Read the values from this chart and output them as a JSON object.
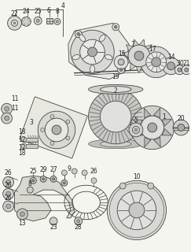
{
  "bg_color": "#f5f5f0",
  "line_color": "#444444",
  "lw": 0.6,
  "fig_width": 2.43,
  "fig_height": 3.2,
  "dpi": 100
}
